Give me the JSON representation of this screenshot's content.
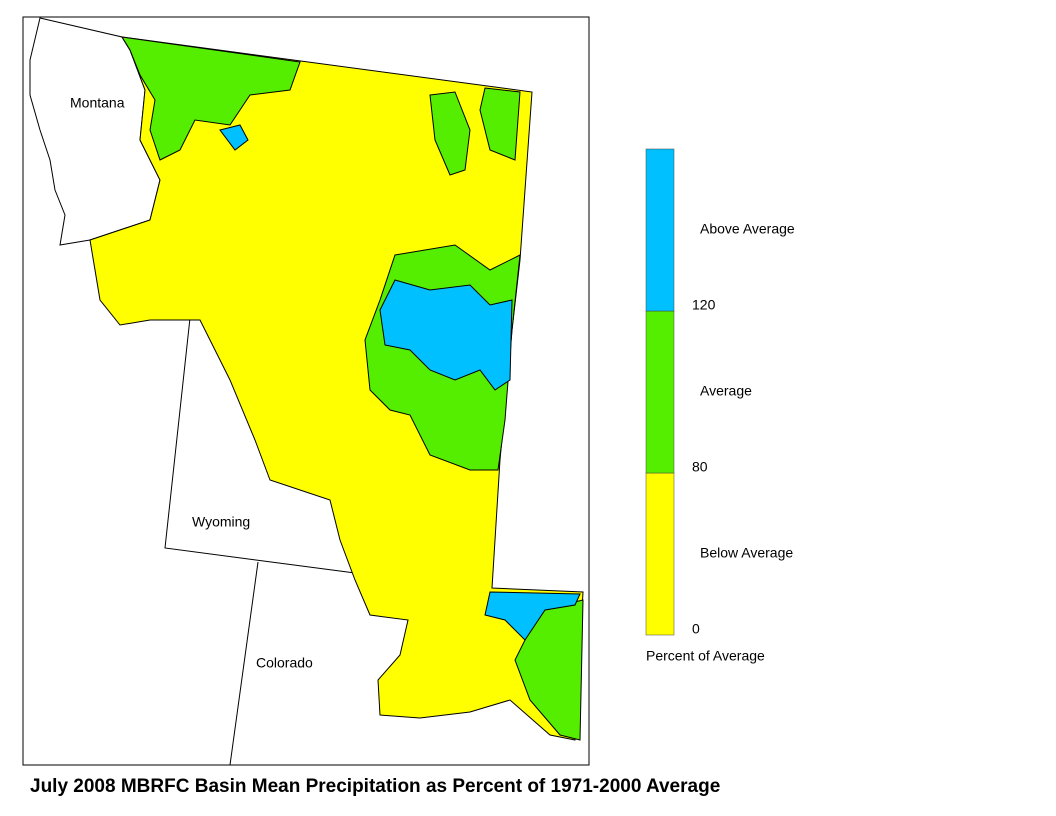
{
  "map": {
    "title": "July 2008 MBRFC Basin Mean Precipitation as Percent of 1971-2000 Average",
    "states": [
      "Montana",
      "Wyoming",
      "Colorado"
    ],
    "legend": {
      "title": "Percent of Average",
      "classes": [
        {
          "label": "Below Average",
          "color": "#ffff00"
        },
        {
          "label": "Average",
          "color": "#55ee00"
        },
        {
          "label": "Above Average",
          "color": "#00c0ff"
        }
      ],
      "ticks": [
        0,
        80,
        120
      ]
    }
  }
}
